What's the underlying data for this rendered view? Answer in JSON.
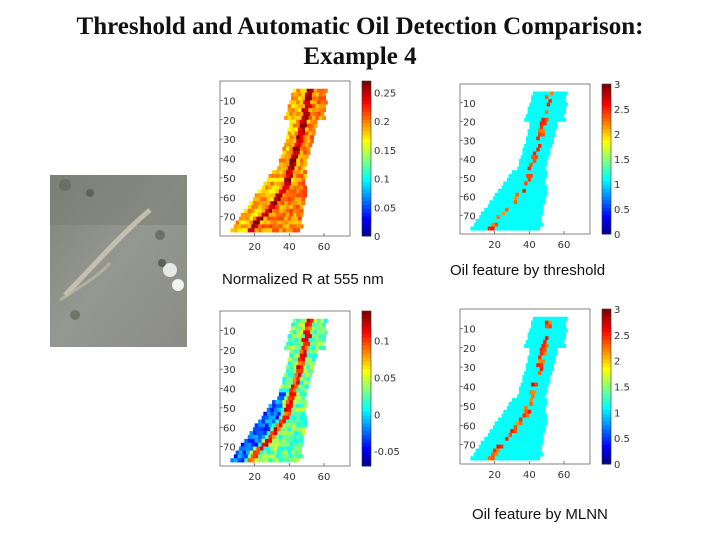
{
  "title_line1": "Threshold and Automatic Oil Detection Comparison:",
  "title_line2": "Example 4",
  "charts": [
    {
      "caption": "Normalized R at 555 nm",
      "xticks": [
        "20",
        "40",
        "60"
      ],
      "yticks": [
        "10",
        "20",
        "30",
        "40",
        "50",
        "60",
        "70"
      ],
      "cbar_ticks": [
        "0.25",
        "0.2",
        "0.15",
        "0.1",
        "0.05",
        "0"
      ]
    },
    {
      "caption": "Oil feature by threshold",
      "xticks": [
        "20",
        "40",
        "60"
      ],
      "yticks": [
        "10",
        "20",
        "30",
        "40",
        "50",
        "60",
        "70"
      ],
      "cbar_ticks": [
        "3",
        "2.5",
        "2",
        "1.5",
        "1",
        "0.5",
        "0"
      ]
    },
    {
      "caption": "",
      "xticks": [
        "20",
        "40",
        "60"
      ],
      "yticks": [
        "10",
        "20",
        "30",
        "40",
        "50",
        "60",
        "70"
      ],
      "cbar_ticks": [
        "0.1",
        "0.05",
        "0",
        "-0.05"
      ]
    },
    {
      "caption": "Oil feature by MLNN",
      "xticks": [
        "20",
        "40",
        "60"
      ],
      "yticks": [
        "10",
        "20",
        "30",
        "40",
        "50",
        "60",
        "70"
      ],
      "cbar_ticks": [
        "3",
        "2.5",
        "2",
        "1.5",
        "1",
        "0.5",
        "0"
      ]
    }
  ],
  "chart_data": [
    {
      "type": "heatmap",
      "title": "Normalized R at 555 nm",
      "x_ticks": [
        20,
        40,
        60
      ],
      "y_ticks": [
        10,
        20,
        30,
        40,
        50,
        60,
        70
      ],
      "y_reversed": true,
      "colorbar_ticks": [
        0.25,
        0.2,
        0.15,
        0.1,
        0.05,
        0
      ],
      "clim": [
        0,
        0.27
      ],
      "colormap": "jet"
    },
    {
      "type": "heatmap",
      "title": "Oil feature by threshold",
      "x_ticks": [
        20,
        40,
        60
      ],
      "y_ticks": [
        10,
        20,
        30,
        40,
        50,
        60,
        70
      ],
      "y_reversed": true,
      "colorbar_ticks": [
        3,
        2.5,
        2,
        1.5,
        1,
        0.5,
        0
      ],
      "clim": [
        0,
        3
      ],
      "colormap": "jet"
    },
    {
      "type": "heatmap",
      "title": "",
      "x_ticks": [
        20,
        40,
        60
      ],
      "y_ticks": [
        10,
        20,
        30,
        40,
        50,
        60,
        70
      ],
      "y_reversed": true,
      "colorbar_ticks": [
        0.1,
        0.05,
        0,
        -0.05
      ],
      "clim": [
        -0.07,
        0.14
      ],
      "colormap": "jet"
    },
    {
      "type": "heatmap",
      "title": "Oil feature by MLNN",
      "x_ticks": [
        20,
        40,
        60
      ],
      "y_ticks": [
        10,
        20,
        30,
        40,
        50,
        60,
        70
      ],
      "y_reversed": true,
      "colorbar_ticks": [
        3,
        2.5,
        2,
        1.5,
        1,
        0.5,
        0
      ],
      "clim": [
        0,
        3
      ],
      "colormap": "jet"
    }
  ]
}
